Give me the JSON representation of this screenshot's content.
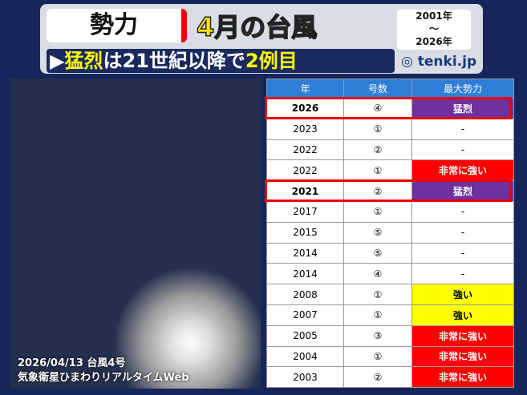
{
  "header": {
    "label": "勢力",
    "title": "4月の台風",
    "period": {
      "from": "2001年",
      "sep": "～",
      "to": "2026年"
    },
    "subtitle": [
      {
        "text": "▶",
        "color": "#ffffff"
      },
      {
        "text": "猛烈",
        "color": "#ffff00"
      },
      {
        "text": "は21世紀以降で",
        "color": "#ffffff"
      },
      {
        "text": "2例目",
        "color": "#ffff00"
      }
    ],
    "logo": "tenki.jp"
  },
  "image": {
    "caption": [
      "2026/04/13 台風4号",
      "気象衛星ひまわりリアルタイムWeb"
    ]
  },
  "table": {
    "columns": [
      "年",
      "号数",
      "最大勢力"
    ],
    "rows": [
      {
        "year": "2026",
        "number": "④",
        "intensity": "猛烈",
        "fill": "#7030a0",
        "text_color": "#ffffff",
        "highlight": true
      },
      {
        "year": "2023",
        "number": "①",
        "intensity": "-",
        "fill": "#ffffff",
        "text_color": "#000000",
        "highlight": false
      },
      {
        "year": "2022",
        "number": "②",
        "intensity": "-",
        "fill": "#ffffff",
        "text_color": "#000000",
        "highlight": false
      },
      {
        "year": "2022",
        "number": "①",
        "intensity": "非常に強い",
        "fill": "#ff0000",
        "text_color": "#ffffff",
        "highlight": false
      },
      {
        "year": "2021",
        "number": "②",
        "intensity": "猛烈",
        "fill": "#7030a0",
        "text_color": "#ffffff",
        "highlight": true
      },
      {
        "year": "2017",
        "number": "①",
        "intensity": "-",
        "fill": "#ffffff",
        "text_color": "#000000",
        "highlight": false
      },
      {
        "year": "2015",
        "number": "⑤",
        "intensity": "-",
        "fill": "#ffffff",
        "text_color": "#000000",
        "highlight": false
      },
      {
        "year": "2014",
        "number": "⑤",
        "intensity": "-",
        "fill": "#ffffff",
        "text_color": "#000000",
        "highlight": false
      },
      {
        "year": "2014",
        "number": "④",
        "intensity": "-",
        "fill": "#ffffff",
        "text_color": "#000000",
        "highlight": false
      },
      {
        "year": "2008",
        "number": "①",
        "intensity": "強い",
        "fill": "#ffff00",
        "text_color": "#000000",
        "highlight": false
      },
      {
        "year": "2007",
        "number": "①",
        "intensity": "強い",
        "fill": "#ffff00",
        "text_color": "#000000",
        "highlight": false
      },
      {
        "year": "2005",
        "number": "③",
        "intensity": "非常に強い",
        "fill": "#ff0000",
        "text_color": "#ffffff",
        "highlight": false
      },
      {
        "year": "2004",
        "number": "①",
        "intensity": "非常に強い",
        "fill": "#ff0000",
        "text_color": "#ffffff",
        "highlight": false
      },
      {
        "year": "2003",
        "number": "②",
        "intensity": "非常に強い",
        "fill": "#ff0000",
        "text_color": "#ffffff",
        "highlight": false
      }
    ]
  }
}
